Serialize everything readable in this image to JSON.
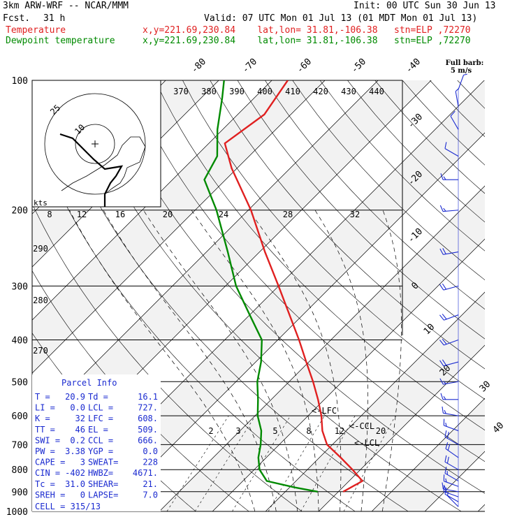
{
  "header": {
    "model": "3km ARW-WRF -- NCAR/MMM",
    "init": "Init: 00 UTC Sun 30 Jun 13",
    "fcst_label": "Fcst.",
    "fcst_value": "31 h",
    "valid": "Valid: 07 UTC Mon 01 Jul 13 (01 MDT Mon 01 Jul 13)",
    "temp_label": "Temperature",
    "temp_loc": "x,y=221.69,230.84    lat,lon= 31.81,-106.38   stn=ELP ,72270",
    "dew_label": "Dewpoint temperature",
    "dew_loc": "x,y=221.69,230.84    lat,lon= 31.81,-106.38   stn=ELP ,72270"
  },
  "colors": {
    "temperature": "#e02020",
    "dewpoint": "#008a00",
    "barbs": "#1a2ad0",
    "grid": "#000000"
  },
  "barb_legend": {
    "line1": "Full barb:",
    "line2": "5 m/s"
  },
  "parcel_info": {
    "title": "Parcel Info",
    "rows": [
      {
        "a": "T  =",
        "av": "20.9",
        "b": "Td =",
        "bv": "16.1"
      },
      {
        "a": "LI =",
        "av": "0.0",
        "b": "LCL =",
        "bv": "727."
      },
      {
        "a": "K  =",
        "av": "32",
        "b": "LFC =",
        "bv": "608."
      },
      {
        "a": "TT =",
        "av": "46",
        "b": "EL  =",
        "bv": "509."
      },
      {
        "a": "SWI =",
        "av": "0.2",
        "b": "CCL =",
        "bv": "666."
      },
      {
        "a": "PW =",
        "av": "3.38",
        "b": "YGP =",
        "bv": "0.0"
      },
      {
        "a": "CAPE =",
        "av": "3",
        "b": "SWEAT=",
        "bv": "228"
      },
      {
        "a": "CIN =",
        "av": "-402",
        "b": "HWBZ=",
        "bv": "4671."
      },
      {
        "a": "Tc =",
        "av": "31.0",
        "b": "SHEAR=",
        "bv": "21."
      },
      {
        "a": "SREH =",
        "av": "0",
        "b": "LAPSE=",
        "bv": "7.0"
      }
    ],
    "cell": "CELL = 315/13"
  },
  "chart_data": {
    "type": "line",
    "chart_kind": "skew-T log-p sounding",
    "y_axis": {
      "label": "",
      "scale": "log",
      "range": [
        1000,
        100
      ],
      "ticks": [
        100,
        200,
        300,
        400,
        500,
        600,
        700,
        800,
        900,
        1000
      ]
    },
    "isotherm_labels": [
      "-80",
      "-70",
      "-60",
      "-50",
      "-40",
      "-30",
      "-20",
      "-10",
      "0",
      "10",
      "20",
      "30",
      "40"
    ],
    "theta_labels_top": [
      "370",
      "380",
      "390",
      "400",
      "410",
      "420",
      "430",
      "440"
    ],
    "theta_labels_left": [
      "290",
      "280",
      "270"
    ],
    "mixing_ratio_labels": [
      "2",
      "3",
      "5",
      "8",
      "12",
      "20"
    ],
    "hodograph": {
      "ring_labels": [
        "25",
        "10"
      ],
      "units": "kts",
      "x_ticks": [
        "8",
        "12",
        "16",
        "20",
        "24",
        "28",
        "32"
      ]
    },
    "markers": [
      "<-LFC",
      "<-CCL",
      "<-LCL"
    ],
    "series": [
      {
        "name": "Temperature",
        "p": [
          900,
          850,
          800,
          750,
          700,
          650,
          600,
          550,
          500,
          450,
          400,
          350,
          300,
          250,
          200,
          160,
          140,
          120,
          100
        ],
        "t": [
          20.9,
          22.5,
          18.5,
          14.0,
          9.0,
          5.5,
          2.5,
          -1.2,
          -5.5,
          -10.5,
          -16.0,
          -22.5,
          -30.0,
          -39.0,
          -49.5,
          -61.0,
          -67.0,
          -65.0,
          -67.0
        ]
      },
      {
        "name": "Dewpoint temperature",
        "p": [
          900,
          880,
          850,
          800,
          750,
          700,
          650,
          600,
          550,
          500,
          450,
          400,
          350,
          300,
          250,
          200,
          170,
          150,
          130,
          110,
          100
        ],
        "t": [
          16.1,
          11.0,
          4.5,
          1.0,
          -1.5,
          -3.5,
          -6.0,
          -9.5,
          -12.5,
          -16.0,
          -19.0,
          -23.0,
          -30.0,
          -38.0,
          -46.0,
          -56.0,
          -64.0,
          -66.0,
          -71.0,
          -76.0,
          -79.0
        ]
      }
    ],
    "wind_barbs": [
      {
        "p": 975,
        "spd": 5,
        "dir": 315
      },
      {
        "p": 950,
        "spd": 10,
        "dir": 300
      },
      {
        "p": 925,
        "spd": 15,
        "dir": 290
      },
      {
        "p": 900,
        "spd": 15,
        "dir": 280
      },
      {
        "p": 875,
        "spd": 15,
        "dir": 290
      },
      {
        "p": 850,
        "spd": 15,
        "dir": 300
      },
      {
        "p": 800,
        "spd": 20,
        "dir": 300
      },
      {
        "p": 750,
        "spd": 20,
        "dir": 305
      },
      {
        "p": 700,
        "spd": 20,
        "dir": 300
      },
      {
        "p": 650,
        "spd": 15,
        "dir": 290
      },
      {
        "p": 600,
        "spd": 15,
        "dir": 280
      },
      {
        "p": 550,
        "spd": 15,
        "dir": 270
      },
      {
        "p": 500,
        "spd": 15,
        "dir": 260
      },
      {
        "p": 450,
        "spd": 20,
        "dir": 255
      },
      {
        "p": 400,
        "spd": 20,
        "dir": 250
      },
      {
        "p": 350,
        "spd": 20,
        "dir": 250
      },
      {
        "p": 300,
        "spd": 20,
        "dir": 255
      },
      {
        "p": 250,
        "spd": 20,
        "dir": 260
      },
      {
        "p": 200,
        "spd": 15,
        "dir": 265
      },
      {
        "p": 170,
        "spd": 15,
        "dir": 270
      },
      {
        "p": 150,
        "spd": 10,
        "dir": 300
      },
      {
        "p": 130,
        "spd": 10,
        "dir": 330
      },
      {
        "p": 115,
        "spd": 5,
        "dir": 350
      },
      {
        "p": 105,
        "spd": 5,
        "dir": 20
      }
    ]
  }
}
